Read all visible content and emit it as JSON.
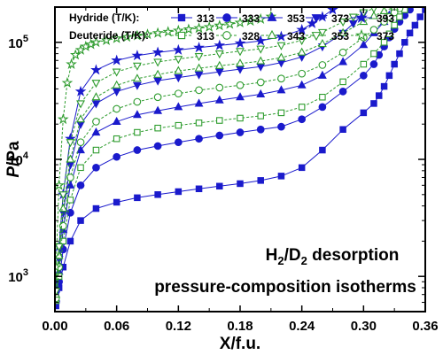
{
  "chart_data": {
    "type": "scatter",
    "xlabel": "X/f.u.",
    "ylabel_italic": "P",
    "ylabel_rest": "/Pa",
    "xlim": [
      0,
      0.36
    ],
    "ylim": [
      500,
      200000
    ],
    "yscale": "log",
    "x_ticks": [
      "0.00",
      "0.06",
      "0.12",
      "0.18",
      "0.24",
      "0.30",
      "0.36"
    ],
    "y_ticks": [
      {
        "value": 1000,
        "base": "10",
        "exp": "3"
      },
      {
        "value": 10000,
        "base": "10",
        "exp": "4"
      },
      {
        "value": 100000,
        "base": "10",
        "exp": "5"
      }
    ],
    "legend": {
      "placement": "top",
      "hydride_label": "Hydride (T/K):",
      "deuteride_label": "Deuteride (T/K):"
    },
    "annotation": {
      "line1_h": "H",
      "line1_sub1": "2",
      "line1_mid": "/D",
      "line1_sub2": "2",
      "line1_rest": " desorption",
      "line2": "pressure-composition isotherms"
    },
    "colors": {
      "hydride": "#1a1acc",
      "deuteride": "#2e9c2e"
    },
    "series": [
      {
        "name": "313",
        "group": "hydride",
        "marker": "square",
        "filled": true,
        "color": "#1a1acc",
        "x": [
          0.001,
          0.004,
          0.008,
          0.015,
          0.025,
          0.04,
          0.06,
          0.08,
          0.1,
          0.12,
          0.14,
          0.16,
          0.18,
          0.2,
          0.22,
          0.24,
          0.26,
          0.28,
          0.3,
          0.31,
          0.315,
          0.32,
          0.325,
          0.33,
          0.335,
          0.34,
          0.345,
          0.35,
          0.355,
          0.36
        ],
        "y": [
          560,
          800,
          1200,
          2000,
          3000,
          3800,
          4300,
          4700,
          5000,
          5300,
          5600,
          5900,
          6200,
          6600,
          7200,
          8500,
          12000,
          18000,
          25000,
          30000,
          35000,
          42000,
          52000,
          65000,
          80000,
          100000,
          120000,
          140000,
          165000,
          190000
        ]
      },
      {
        "name": "333",
        "group": "hydride",
        "marker": "circle",
        "filled": true,
        "color": "#1a1acc",
        "x": [
          0.001,
          0.004,
          0.008,
          0.015,
          0.025,
          0.04,
          0.06,
          0.08,
          0.1,
          0.12,
          0.14,
          0.16,
          0.18,
          0.2,
          0.22,
          0.24,
          0.26,
          0.28,
          0.3,
          0.31,
          0.315,
          0.32,
          0.325,
          0.33,
          0.335,
          0.34,
          0.345
        ],
        "y": [
          600,
          900,
          1700,
          3500,
          6000,
          8500,
          10500,
          12000,
          13000,
          14000,
          15000,
          16000,
          17000,
          18000,
          19000,
          22000,
          28000,
          38000,
          52000,
          65000,
          78000,
          92000,
          110000,
          130000,
          150000,
          170000,
          190000
        ]
      },
      {
        "name": "353",
        "group": "hydride",
        "marker": "triangle-up",
        "filled": true,
        "color": "#1a1acc",
        "x": [
          0.001,
          0.004,
          0.008,
          0.015,
          0.025,
          0.04,
          0.06,
          0.08,
          0.1,
          0.12,
          0.14,
          0.16,
          0.18,
          0.2,
          0.22,
          0.24,
          0.26,
          0.28,
          0.3,
          0.31,
          0.32,
          0.325,
          0.33
        ],
        "y": [
          650,
          1100,
          2500,
          6000,
          12000,
          17000,
          21000,
          24000,
          26000,
          28000,
          30000,
          32000,
          34000,
          36000,
          39000,
          43000,
          52000,
          68000,
          95000,
          120000,
          150000,
          170000,
          195000
        ]
      },
      {
        "name": "373",
        "group": "hydride",
        "marker": "triangle-down",
        "filled": true,
        "color": "#1a1acc",
        "x": [
          0.001,
          0.004,
          0.008,
          0.015,
          0.025,
          0.04,
          0.06,
          0.08,
          0.1,
          0.12,
          0.14,
          0.16,
          0.18,
          0.2,
          0.22,
          0.24,
          0.26,
          0.28,
          0.29,
          0.3
        ],
        "y": [
          700,
          1400,
          3500,
          9000,
          20000,
          30000,
          38000,
          43000,
          47000,
          50000,
          53000,
          56000,
          59000,
          62000,
          67000,
          75000,
          92000,
          120000,
          145000,
          175000
        ]
      },
      {
        "name": "393",
        "group": "hydride",
        "marker": "star",
        "filled": true,
        "color": "#1a1acc",
        "x": [
          0.001,
          0.004,
          0.008,
          0.015,
          0.025,
          0.04,
          0.06,
          0.08,
          0.1,
          0.12,
          0.14,
          0.16,
          0.18,
          0.2,
          0.22,
          0.24,
          0.25,
          0.26,
          0.27
        ],
        "y": [
          750,
          1800,
          5000,
          15000,
          38000,
          58000,
          70000,
          77000,
          82000,
          86000,
          90000,
          94000,
          98000,
          103000,
          112000,
          128000,
          145000,
          165000,
          190000
        ]
      },
      {
        "name": "313",
        "group": "deuteride",
        "marker": "square",
        "filled": false,
        "color": "#2e9c2e",
        "x": [
          0.001,
          0.004,
          0.008,
          0.015,
          0.025,
          0.04,
          0.06,
          0.08,
          0.1,
          0.12,
          0.14,
          0.16,
          0.18,
          0.2,
          0.22,
          0.24,
          0.26,
          0.28,
          0.3,
          0.31,
          0.32,
          0.325,
          0.33,
          0.335,
          0.34
        ],
        "y": [
          620,
          1000,
          2000,
          4500,
          8500,
          12000,
          15000,
          17000,
          18500,
          19500,
          20500,
          21500,
          22500,
          23500,
          25000,
          28000,
          34000,
          46000,
          65000,
          80000,
          100000,
          118000,
          140000,
          165000,
          190000
        ]
      },
      {
        "name": "328",
        "group": "deuteride",
        "marker": "circle",
        "filled": false,
        "color": "#2e9c2e",
        "x": [
          0.001,
          0.004,
          0.008,
          0.015,
          0.025,
          0.04,
          0.06,
          0.08,
          0.1,
          0.12,
          0.14,
          0.16,
          0.18,
          0.2,
          0.22,
          0.24,
          0.26,
          0.28,
          0.3,
          0.31,
          0.32,
          0.325,
          0.33,
          0.335
        ],
        "y": [
          650,
          1200,
          2700,
          7000,
          14000,
          21000,
          27000,
          31000,
          34000,
          36500,
          39000,
          41000,
          43000,
          45500,
          49000,
          54000,
          64000,
          82000,
          110000,
          128000,
          150000,
          165000,
          180000,
          195000
        ]
      },
      {
        "name": "343",
        "group": "deuteride",
        "marker": "triangle-up",
        "filled": false,
        "color": "#2e9c2e",
        "x": [
          0.001,
          0.004,
          0.008,
          0.015,
          0.025,
          0.04,
          0.06,
          0.08,
          0.1,
          0.12,
          0.14,
          0.16,
          0.18,
          0.2,
          0.22,
          0.24,
          0.26,
          0.28,
          0.3,
          0.31,
          0.32,
          0.33
        ],
        "y": [
          700,
          1500,
          3800,
          10000,
          22000,
          34000,
          43000,
          49000,
          53000,
          57000,
          60000,
          63000,
          66000,
          69000,
          74000,
          82000,
          97000,
          120000,
          150000,
          168000,
          185000,
          200000
        ]
      },
      {
        "name": "353",
        "group": "deuteride",
        "marker": "triangle-down",
        "filled": false,
        "color": "#2e9c2e",
        "x": [
          0.001,
          0.004,
          0.008,
          0.015,
          0.025,
          0.04,
          0.06,
          0.08,
          0.1,
          0.12,
          0.14,
          0.16,
          0.18,
          0.2,
          0.22,
          0.24,
          0.26,
          0.28,
          0.29,
          0.3,
          0.31
        ],
        "y": [
          750,
          1800,
          5000,
          14000,
          30000,
          45000,
          56000,
          63000,
          68000,
          72000,
          76000,
          80000,
          84000,
          88000,
          94000,
          104000,
          122000,
          150000,
          165000,
          180000,
          195000
        ]
      },
      {
        "name": "373",
        "group": "deuteride",
        "marker": "star",
        "filled": false,
        "color": "#2e9c2e",
        "x": [
          0.001,
          0.004,
          0.008,
          0.012,
          0.016,
          0.02,
          0.025,
          0.03,
          0.035,
          0.04,
          0.05,
          0.06,
          0.07,
          0.08,
          0.09,
          0.1,
          0.11,
          0.12,
          0.13,
          0.14,
          0.15,
          0.16,
          0.17,
          0.18,
          0.19,
          0.2,
          0.21
        ],
        "y": [
          1200,
          6000,
          22000,
          45000,
          65000,
          78000,
          86000,
          92000,
          96000,
          100000,
          104000,
          108000,
          111000,
          114000,
          117000,
          120000,
          123000,
          126000,
          129000,
          132000,
          135000,
          139000,
          143000,
          147000,
          152000,
          158000,
          166000
        ]
      }
    ]
  }
}
